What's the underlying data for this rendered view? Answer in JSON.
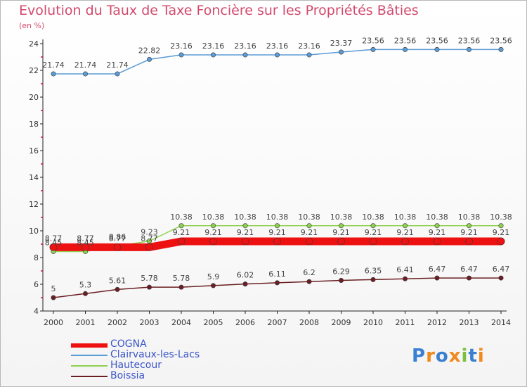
{
  "page": {
    "title": "Evolution du Taux de Taxe Foncière sur les Propriétés Bâties",
    "unit": "(en %)",
    "logo_letters": [
      {
        "ch": "P",
        "color": "#3a7fd0"
      },
      {
        "ch": "r",
        "color": "#f08a1c"
      },
      {
        "ch": "o",
        "color": "#3a7fd0"
      },
      {
        "ch": "x",
        "color": "#f08a1c"
      },
      {
        "ch": "i",
        "color": "#7bbf3a"
      },
      {
        "ch": "t",
        "color": "#3a7fd0"
      },
      {
        "ch": "i",
        "color": "#f08a1c"
      }
    ]
  },
  "chart_data": {
    "type": "line",
    "title": "Evolution du Taux de Taxe Foncière sur les Propriétés Bâties",
    "ylabel": "(en %)",
    "xlabel": "",
    "x": [
      "2000",
      "2001",
      "2002",
      "2003",
      "2004",
      "2005",
      "2006",
      "2007",
      "2008",
      "2009",
      "2010",
      "2011",
      "2012",
      "2013",
      "2014"
    ],
    "ylim": [
      4,
      24
    ],
    "yticks": [
      4,
      6,
      8,
      10,
      12,
      14,
      16,
      18,
      20,
      22,
      24
    ],
    "grid": false,
    "legend_position": "bottom-left",
    "series": [
      {
        "name": "COGNA",
        "color": "#ee1111",
        "values": [
          8.77,
          8.77,
          8.77,
          8.77,
          9.21,
          9.21,
          9.21,
          9.21,
          9.21,
          9.21,
          9.21,
          9.21,
          9.21,
          9.21,
          9.21
        ],
        "labels": [
          "8.77",
          "8.77",
          "8.77",
          "8.77",
          "9.21",
          "9.21",
          "9.21",
          "9.21",
          "9.21",
          "9.21",
          "9.21",
          "9.21",
          "9.21",
          "9.21",
          "9.21"
        ]
      },
      {
        "name": "Clairvaux-les-Lacs",
        "color": "#5b9bd5",
        "values": [
          21.74,
          21.74,
          21.74,
          22.82,
          23.16,
          23.16,
          23.16,
          23.16,
          23.16,
          23.37,
          23.56,
          23.56,
          23.56,
          23.56,
          23.56
        ],
        "labels": [
          "21.74",
          "21.74",
          "21.74",
          "22.82",
          "23.16",
          "23.16",
          "23.16",
          "23.16",
          "23.16",
          "23.37",
          "23.56",
          "23.56",
          "23.56",
          "23.56",
          "23.56"
        ]
      },
      {
        "name": "Hautecour",
        "color": "#8fd14f",
        "values": [
          8.45,
          8.45,
          8.86,
          9.23,
          10.38,
          10.38,
          10.38,
          10.38,
          10.38,
          10.38,
          10.38,
          10.38,
          10.38,
          10.38,
          10.38
        ],
        "labels": [
          "8.45",
          "8.45",
          "8.86",
          "9.23",
          "10.38",
          "10.38",
          "10.38",
          "10.38",
          "10.38",
          "10.38",
          "10.38",
          "10.38",
          "10.38",
          "10.38",
          "10.38"
        ]
      },
      {
        "name": "Boissia",
        "color": "#6b1f24",
        "values": [
          5,
          5.3,
          5.61,
          5.78,
          5.78,
          5.9,
          6.02,
          6.11,
          6.2,
          6.29,
          6.35,
          6.41,
          6.47,
          6.47,
          6.47
        ],
        "labels": [
          "5",
          "5.3",
          "5.61",
          "5.78",
          "5.78",
          "5.9",
          "6.02",
          "6.11",
          "6.2",
          "6.29",
          "6.35",
          "6.41",
          "6.47",
          "6.47",
          "6.47"
        ]
      }
    ]
  }
}
